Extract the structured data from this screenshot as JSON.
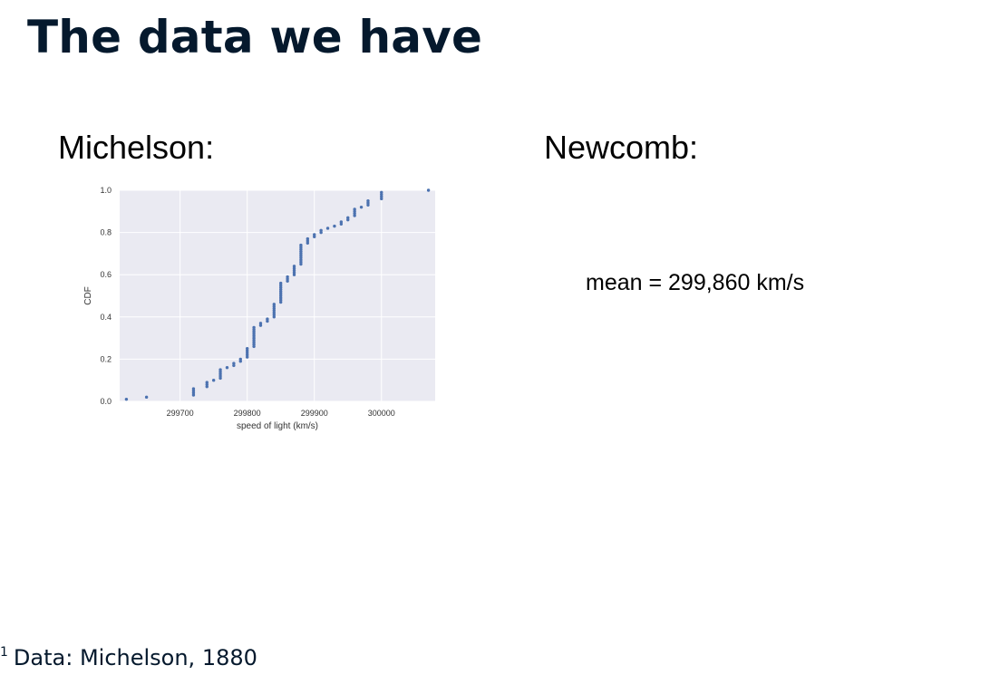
{
  "slide": {
    "title": "The data we have",
    "footnote_marker": "1",
    "footnote": "Data: Michelson, 1880"
  },
  "panels": {
    "left_heading": "Michelson:",
    "right_heading": "Newcomb:",
    "right_text": "mean = 299,860 km/s"
  },
  "chart_data": {
    "type": "scatter",
    "title": "",
    "xlabel": "speed of light (km/s)",
    "ylabel": "CDF",
    "xlim": [
      299610,
      300080
    ],
    "ylim": [
      0.0,
      1.0
    ],
    "xticks": [
      299700,
      299800,
      299900,
      300000
    ],
    "yticks": [
      0.0,
      0.2,
      0.4,
      0.6,
      0.8,
      1.0
    ],
    "xtick_labels": [
      "299700",
      "299800",
      "299900",
      "300000"
    ],
    "ytick_labels": [
      "0.0",
      "0.2",
      "0.4",
      "0.6",
      "0.8",
      "1.0"
    ],
    "grid": true,
    "color": "#4c72b0",
    "background": "#eaeaf2",
    "values": [
      299620,
      299650,
      299720,
      299720,
      299720,
      299720,
      299740,
      299740,
      299740,
      299750,
      299760,
      299760,
      299760,
      299760,
      299760,
      299770,
      299780,
      299780,
      299790,
      299790,
      299800,
      299800,
      299800,
      299800,
      299800,
      299810,
      299810,
      299810,
      299810,
      299810,
      299810,
      299810,
      299810,
      299810,
      299810,
      299820,
      299820,
      299830,
      299830,
      299840,
      299840,
      299840,
      299840,
      299840,
      299840,
      299840,
      299850,
      299850,
      299850,
      299850,
      299850,
      299850,
      299850,
      299850,
      299850,
      299850,
      299860,
      299860,
      299860,
      299870,
      299870,
      299870,
      299870,
      299870,
      299880,
      299880,
      299880,
      299880,
      299880,
      299880,
      299880,
      299880,
      299880,
      299880,
      299890,
      299890,
      299890,
      299900,
      299900,
      299910,
      299910,
      299920,
      299930,
      299940,
      299940,
      299950,
      299950,
      299960,
      299960,
      299960,
      299960,
      299970,
      299980,
      299980,
      299980,
      300000,
      300000,
      300000,
      300000,
      300070
    ]
  }
}
